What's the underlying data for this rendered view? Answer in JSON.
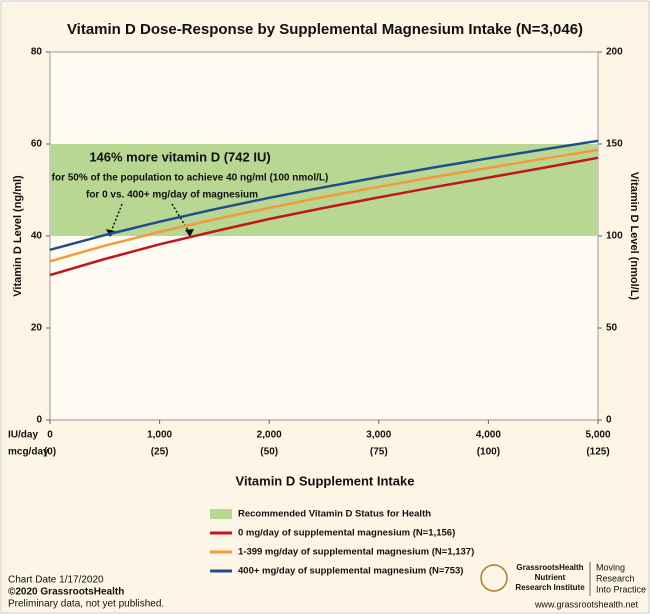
{
  "chart_data": {
    "type": "line",
    "title": "Vitamin D Dose-Response by Supplemental Magnesium Intake (N=3,046)",
    "x_label": "Vitamin D Supplement Intake",
    "y_label": "Vitamin D Level (ng/ml)",
    "y2_label": "Vitamin D Level (nmol/L)",
    "x_row_labels": [
      "IU/day",
      "mcg/day"
    ],
    "x": [
      0,
      500,
      1000,
      1500,
      2000,
      2500,
      3000,
      3500,
      4000,
      4500,
      5000
    ],
    "series": [
      {
        "name": "0 mg/day of supplemental magnesium (N=1,156)",
        "color": "#c0171c",
        "values": [
          31.5,
          35.0,
          38.2,
          41.0,
          43.7,
          46.1,
          48.4,
          50.6,
          52.7,
          54.8,
          57.0
        ]
      },
      {
        "name": "1-399 mg/day of supplemental magnesium (N=1,137)",
        "color": "#f39a3c",
        "values": [
          34.5,
          37.9,
          40.9,
          43.6,
          46.1,
          48.5,
          50.7,
          52.8,
          54.8,
          56.8,
          58.7
        ]
      },
      {
        "name": "400+ mg/day of supplemental magnesium (N=753)",
        "color": "#1f4e8c",
        "values": [
          37.0,
          40.2,
          43.1,
          45.8,
          48.3,
          50.6,
          52.8,
          54.9,
          56.9,
          58.8,
          60.7
        ]
      }
    ],
    "band": {
      "name": "Recommended Vitamin D Status for Health",
      "range": [
        40,
        60
      ],
      "color": "#b8d792"
    },
    "xlim": [
      0,
      5000
    ],
    "xticks": [
      0,
      {
        "value": 1000,
        "label": "1,000"
      },
      {
        "value": 2000,
        "label": "2,000"
      },
      {
        "value": 3000,
        "label": "3,000"
      },
      {
        "value": 4000,
        "label": "4,000"
      },
      {
        "value": 5000,
        "label": "5,000"
      }
    ],
    "xticks2": [
      {
        "value": 0,
        "label": "(0)"
      },
      {
        "value": 25,
        "label": "(25)"
      },
      {
        "value": 50,
        "label": "(50)"
      },
      {
        "value": 75,
        "label": "(75)"
      },
      {
        "value": 100,
        "label": "(100)"
      },
      {
        "value": 125,
        "label": "(125)"
      }
    ],
    "ylim": [
      0,
      80
    ],
    "yticks": [
      0,
      20,
      40,
      60,
      80
    ],
    "y2lim": [
      0,
      200
    ],
    "y2ticks": [
      0,
      50,
      100,
      150,
      200
    ],
    "annotations": [
      "146% more vitamin D (742 IU)",
      "for 50% of the population to achieve 40 ng/ml (100 nmol/L)",
      "for 0 vs. 400+ mg/day of magnesium"
    ],
    "footer": [
      "Chart Date 1/17/2020",
      "©2020 GrassrootsHealth",
      "Preliminary data, not yet published."
    ],
    "logo": [
      "GrassrootsHealth",
      "Nutrient",
      "Research Institute",
      "Moving",
      "Research",
      "Into Practice"
    ],
    "website": "www.grassrootshealth.net"
  }
}
